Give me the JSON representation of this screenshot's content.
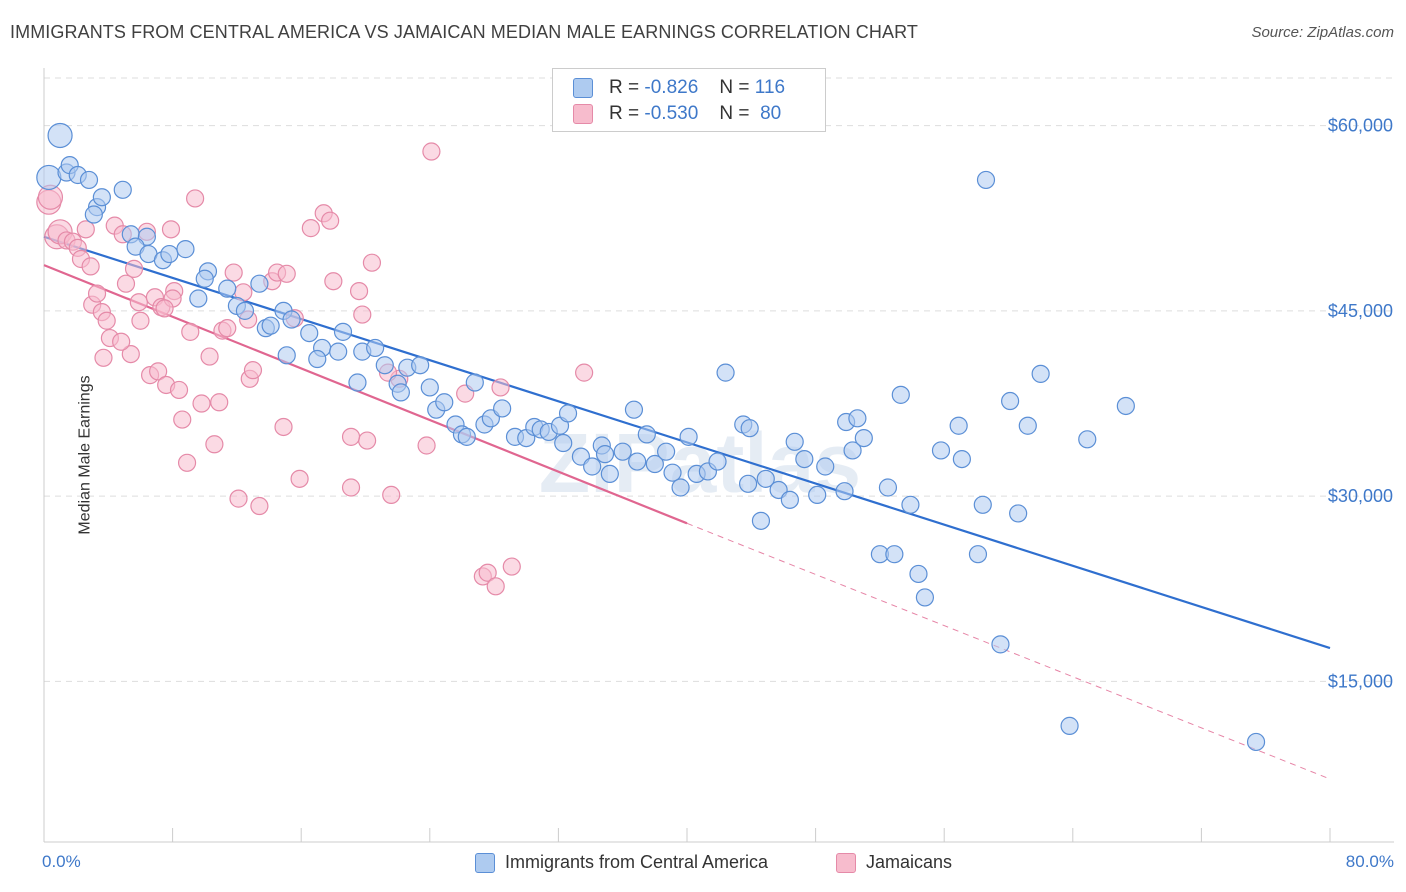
{
  "title": "IMMIGRANTS FROM CENTRAL AMERICA VS JAMAICAN MEDIAN MALE EARNINGS CORRELATION CHART",
  "source": "Source: ZipAtlas.com",
  "watermark": "ZIPatlas",
  "colors": {
    "blue_fill": "#aecbf0",
    "blue_stroke": "#5b8fd6",
    "blue_line": "#2f6fcf",
    "pink_fill": "#f7bccd",
    "pink_stroke": "#e58aa8",
    "pink_line": "#e06690",
    "axis_text": "#3e78c9",
    "grid": "#dddddd"
  },
  "stats": {
    "r_label": "R =",
    "n_label": "N =",
    "series": [
      {
        "r": "-0.826",
        "n": "116"
      },
      {
        "r": "-0.530",
        "n": "80"
      }
    ]
  },
  "chart_data": {
    "type": "scatter",
    "title": "IMMIGRANTS FROM CENTRAL AMERICA VS JAMAICAN MEDIAN MALE EARNINGS CORRELATION CHART",
    "xlabel": "",
    "ylabel": "Median Male Earnings",
    "xlim": [
      0,
      80
    ],
    "ylim": [
      2000,
      64500
    ],
    "x_tick_labels": [
      "0.0%",
      "80.0%"
    ],
    "y_ticks": [
      15000,
      30000,
      45000,
      60000
    ],
    "y_tick_labels": [
      "$15,000",
      "$30,000",
      "$45,000",
      "$60,000"
    ],
    "grid": true,
    "legend_placement": "bottom-center",
    "series": [
      {
        "name": "Immigrants from Central America",
        "trend": {
          "x": [
            0,
            80
          ],
          "y": [
            51000,
            17700
          ],
          "dashed_after": null
        },
        "points": [
          [
            0.3,
            55800
          ],
          [
            1.0,
            59200
          ],
          [
            1.4,
            56200
          ],
          [
            1.6,
            56800
          ],
          [
            2.1,
            56000
          ],
          [
            2.8,
            55600
          ],
          [
            3.3,
            53400
          ],
          [
            3.6,
            54200
          ],
          [
            4.9,
            54800
          ],
          [
            3.1,
            52800
          ],
          [
            5.4,
            51200
          ],
          [
            6.4,
            51000
          ],
          [
            5.7,
            50200
          ],
          [
            6.5,
            49600
          ],
          [
            7.4,
            49100
          ],
          [
            7.8,
            49600
          ],
          [
            8.8,
            50000
          ],
          [
            10.2,
            48200
          ],
          [
            10.0,
            47600
          ],
          [
            9.6,
            46000
          ],
          [
            11.4,
            46800
          ],
          [
            12.0,
            45400
          ],
          [
            12.5,
            45000
          ],
          [
            13.4,
            47200
          ],
          [
            13.8,
            43600
          ],
          [
            14.1,
            43800
          ],
          [
            14.9,
            45000
          ],
          [
            15.4,
            44300
          ],
          [
            15.1,
            41400
          ],
          [
            16.5,
            43200
          ],
          [
            17.3,
            42000
          ],
          [
            17.0,
            41100
          ],
          [
            18.6,
            43300
          ],
          [
            18.3,
            41700
          ],
          [
            19.8,
            41700
          ],
          [
            20.6,
            42000
          ],
          [
            19.5,
            39200
          ],
          [
            21.2,
            40600
          ],
          [
            22.0,
            39100
          ],
          [
            22.6,
            40400
          ],
          [
            22.2,
            38400
          ],
          [
            23.4,
            40600
          ],
          [
            24.0,
            38800
          ],
          [
            24.4,
            37000
          ],
          [
            24.9,
            37600
          ],
          [
            25.6,
            35800
          ],
          [
            26.0,
            35000
          ],
          [
            26.3,
            34800
          ],
          [
            26.8,
            39200
          ],
          [
            27.4,
            35800
          ],
          [
            27.8,
            36300
          ],
          [
            28.5,
            37100
          ],
          [
            29.3,
            34800
          ],
          [
            30.0,
            34700
          ],
          [
            30.5,
            35600
          ],
          [
            30.9,
            35400
          ],
          [
            31.4,
            35200
          ],
          [
            32.1,
            35700
          ],
          [
            32.6,
            36700
          ],
          [
            32.3,
            34300
          ],
          [
            33.4,
            33200
          ],
          [
            34.1,
            32400
          ],
          [
            34.7,
            34100
          ],
          [
            35.2,
            31800
          ],
          [
            34.9,
            33400
          ],
          [
            36.0,
            33600
          ],
          [
            36.7,
            37000
          ],
          [
            36.9,
            32800
          ],
          [
            37.5,
            35000
          ],
          [
            38.0,
            32600
          ],
          [
            38.7,
            33600
          ],
          [
            39.1,
            31900
          ],
          [
            39.6,
            30700
          ],
          [
            40.1,
            34800
          ],
          [
            40.6,
            31800
          ],
          [
            41.3,
            32000
          ],
          [
            41.9,
            32800
          ],
          [
            42.4,
            40000
          ],
          [
            43.5,
            35800
          ],
          [
            43.8,
            31000
          ],
          [
            44.6,
            28000
          ],
          [
            44.9,
            31400
          ],
          [
            45.7,
            30500
          ],
          [
            46.4,
            29700
          ],
          [
            46.7,
            34400
          ],
          [
            47.3,
            33000
          ],
          [
            48.1,
            30100
          ],
          [
            48.6,
            32400
          ],
          [
            49.9,
            36000
          ],
          [
            50.3,
            33700
          ],
          [
            51.0,
            34700
          ],
          [
            52.0,
            25300
          ],
          [
            52.5,
            30700
          ],
          [
            52.9,
            25300
          ],
          [
            53.3,
            38200
          ],
          [
            53.9,
            29300
          ],
          [
            54.4,
            23700
          ],
          [
            54.8,
            21800
          ],
          [
            55.8,
            33700
          ],
          [
            56.9,
            35700
          ],
          [
            58.1,
            25300
          ],
          [
            58.4,
            29300
          ],
          [
            59.5,
            18000
          ],
          [
            60.1,
            37700
          ],
          [
            60.6,
            28600
          ],
          [
            61.2,
            35700
          ],
          [
            62.0,
            39900
          ],
          [
            63.8,
            11400
          ],
          [
            64.9,
            34600
          ],
          [
            67.3,
            37300
          ],
          [
            75.4,
            10100
          ],
          [
            57.1,
            33000
          ],
          [
            50.6,
            36300
          ],
          [
            49.8,
            30400
          ],
          [
            58.6,
            55600
          ],
          [
            43.9,
            35500
          ]
        ]
      },
      {
        "name": "Jamaicans",
        "trend": {
          "x": [
            0,
            40
          ],
          "y": [
            48700,
            27800
          ],
          "dashed_after": 40,
          "dashed_to": {
            "x": 80,
            "y": 7100
          }
        },
        "points": [
          [
            0.3,
            53800
          ],
          [
            0.4,
            54200
          ],
          [
            0.8,
            51000
          ],
          [
            1.0,
            51400
          ],
          [
            1.4,
            50700
          ],
          [
            1.8,
            50600
          ],
          [
            2.1,
            50100
          ],
          [
            2.3,
            49200
          ],
          [
            2.6,
            51600
          ],
          [
            2.9,
            48600
          ],
          [
            3.0,
            45500
          ],
          [
            3.3,
            46400
          ],
          [
            3.6,
            44900
          ],
          [
            3.9,
            44200
          ],
          [
            4.1,
            42800
          ],
          [
            4.4,
            51900
          ],
          [
            4.9,
            51200
          ],
          [
            5.1,
            47200
          ],
          [
            5.4,
            41500
          ],
          [
            5.6,
            48400
          ],
          [
            5.9,
            45700
          ],
          [
            6.0,
            44200
          ],
          [
            6.4,
            51400
          ],
          [
            6.6,
            39800
          ],
          [
            6.9,
            46100
          ],
          [
            7.1,
            40100
          ],
          [
            7.3,
            45300
          ],
          [
            7.6,
            39000
          ],
          [
            7.9,
            51600
          ],
          [
            8.1,
            46600
          ],
          [
            8.4,
            38600
          ],
          [
            8.6,
            36200
          ],
          [
            8.9,
            32700
          ],
          [
            9.1,
            43300
          ],
          [
            9.4,
            54100
          ],
          [
            9.8,
            37500
          ],
          [
            10.3,
            41300
          ],
          [
            10.6,
            34200
          ],
          [
            10.9,
            37600
          ],
          [
            11.1,
            43400
          ],
          [
            11.4,
            43600
          ],
          [
            11.8,
            48100
          ],
          [
            12.1,
            29800
          ],
          [
            12.4,
            46500
          ],
          [
            12.8,
            39500
          ],
          [
            13.0,
            40200
          ],
          [
            13.4,
            29200
          ],
          [
            14.2,
            47400
          ],
          [
            14.5,
            48100
          ],
          [
            14.9,
            35600
          ],
          [
            15.6,
            44400
          ],
          [
            15.9,
            31400
          ],
          [
            16.6,
            51700
          ],
          [
            17.4,
            52900
          ],
          [
            18.0,
            47400
          ],
          [
            17.8,
            52300
          ],
          [
            19.1,
            30700
          ],
          [
            19.6,
            46600
          ],
          [
            19.8,
            44700
          ],
          [
            20.1,
            34500
          ],
          [
            20.4,
            48900
          ],
          [
            19.1,
            34800
          ],
          [
            21.6,
            30100
          ],
          [
            22.1,
            39500
          ],
          [
            23.8,
            34100
          ],
          [
            24.1,
            57900
          ],
          [
            26.2,
            38300
          ],
          [
            27.3,
            23500
          ],
          [
            27.6,
            23800
          ],
          [
            28.4,
            38800
          ],
          [
            29.1,
            24300
          ],
          [
            28.1,
            22700
          ],
          [
            33.6,
            40000
          ],
          [
            12.7,
            44300
          ],
          [
            8.0,
            46000
          ],
          [
            4.8,
            42500
          ],
          [
            15.1,
            48000
          ],
          [
            7.5,
            45200
          ],
          [
            3.7,
            41200
          ],
          [
            21.4,
            40000
          ]
        ]
      }
    ]
  }
}
